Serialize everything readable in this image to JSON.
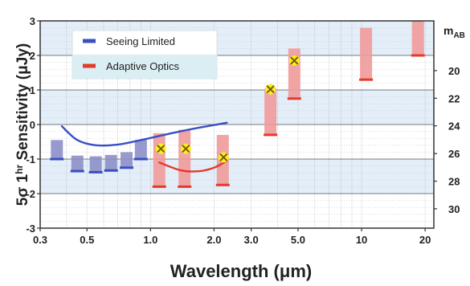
{
  "chart_data": {
    "type": "bar",
    "xlabel": "Wavelength (μm)",
    "ylabel": "5σ 1hr Sensitivity (μJy)",
    "ylabel_parts": [
      "5σ 1",
      "hr",
      " Sensitivity (μJy)"
    ],
    "right_axis_label": "mAB",
    "right_axis_label_parts": [
      "m",
      "AB"
    ],
    "x_scale": "log",
    "xlim": [
      0.3,
      22
    ],
    "ylim": [
      -3,
      3
    ],
    "x_ticks": [
      0.3,
      0.5,
      1.0,
      2.0,
      3.0,
      5.0,
      10,
      20
    ],
    "x_tick_labels": [
      "0.3",
      "0.5",
      "1.0",
      "2.0",
      "3.0",
      "5.0",
      "10",
      "20"
    ],
    "y_ticks": [
      -3,
      -2,
      -1,
      0,
      1,
      2,
      3
    ],
    "y_tick_labels": [
      "-3",
      "-2",
      "-1",
      "0",
      "1",
      "2",
      "3"
    ],
    "right_ticks": [
      20,
      22,
      24,
      26,
      28,
      30
    ],
    "right_tick_labels": [
      "20",
      "22",
      "24",
      "26",
      "28",
      "30"
    ],
    "legend_position": "top-left",
    "grid": true,
    "series": [
      {
        "name": "Seeing Limited",
        "color": "#3a4fc4",
        "bar_color": "#8d8fc8",
        "bars": [
          {
            "x": 0.36,
            "low": -1.0,
            "high": -0.45
          },
          {
            "x": 0.45,
            "low": -1.35,
            "high": -0.9
          },
          {
            "x": 0.55,
            "low": -1.38,
            "high": -0.92
          },
          {
            "x": 0.65,
            "low": -1.33,
            "high": -0.88
          },
          {
            "x": 0.77,
            "low": -1.25,
            "high": -0.8
          },
          {
            "x": 0.9,
            "low": -1.0,
            "high": -0.45
          }
        ],
        "curve": [
          [
            0.38,
            -0.05
          ],
          [
            0.45,
            -0.45
          ],
          [
            0.55,
            -0.6
          ],
          [
            0.7,
            -0.58
          ],
          [
            0.9,
            -0.45
          ],
          [
            1.2,
            -0.28
          ],
          [
            1.6,
            -0.12
          ],
          [
            2.3,
            0.05
          ]
        ]
      },
      {
        "name": "Adaptive Optics",
        "color": "#e23b2b",
        "bar_color": "#ef9a9a",
        "bars": [
          {
            "x": 1.1,
            "low": -1.8,
            "high": -0.25
          },
          {
            "x": 1.45,
            "low": -1.8,
            "high": -0.15
          },
          {
            "x": 2.2,
            "low": -1.75,
            "high": -0.3
          },
          {
            "x": 3.7,
            "low": -0.3,
            "high": 1.05
          },
          {
            "x": 4.8,
            "low": 0.75,
            "high": 2.2
          },
          {
            "x": 10.5,
            "low": 1.3,
            "high": 2.8
          },
          {
            "x": 18.5,
            "low": 2.0,
            "high": 3.0
          }
        ],
        "curve": [
          [
            1.1,
            -1.1
          ],
          [
            1.4,
            -1.33
          ],
          [
            1.7,
            -1.35
          ],
          [
            2.0,
            -1.25
          ],
          [
            2.3,
            -1.05
          ]
        ],
        "markers": [
          {
            "x": 1.12,
            "y": -0.7
          },
          {
            "x": 1.47,
            "y": -0.7
          },
          {
            "x": 2.22,
            "y": -0.95
          },
          {
            "x": 3.7,
            "y": 1.02
          },
          {
            "x": 4.8,
            "y": 1.85
          }
        ]
      }
    ]
  }
}
